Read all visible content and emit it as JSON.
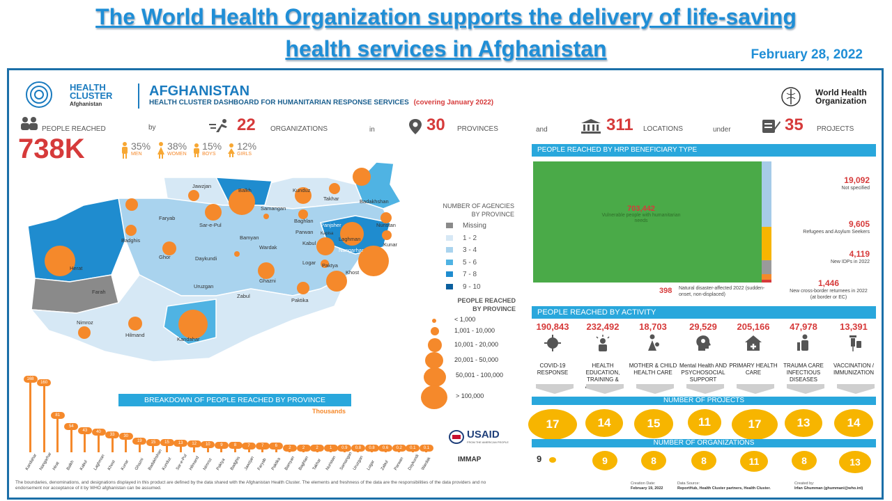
{
  "headline": {
    "line1": "The World Health Organization supports the delivery of life-saving",
    "line2": "health services in Afghanistan",
    "date": "February 28, 2022"
  },
  "dashboard": {
    "logo_line1": "HEALTH",
    "logo_line2": "CLUSTER",
    "logo_line3": "Afghanistan",
    "country": "AFGHANISTAN",
    "subtitle": "HEALTH CLUSTER DASHBOARD FOR HUMANITARIAN RESPONSE SERVICES",
    "covering": "(covering January 2022)",
    "who_line1": "World Health",
    "who_line2": "Organization"
  },
  "stats": {
    "people_label": "PEOPLE REACHED",
    "people_value": "738K",
    "by": "by",
    "orgs_value": "22",
    "orgs_label": "ORGANIZATIONS",
    "in": "in",
    "provinces_value": "30",
    "provinces_label": "PROVINCES",
    "and": "and",
    "locations_value": "311",
    "locations_label": "LOCATIONS",
    "under": "under",
    "projects_value": "35",
    "projects_label": "PROJECTS",
    "demographics": [
      {
        "pct": "35%",
        "label": "MEN"
      },
      {
        "pct": "38%",
        "label": "WOMEN"
      },
      {
        "pct": "15%",
        "label": "BOYS"
      },
      {
        "pct": "12%",
        "label": "GIRLS"
      }
    ]
  },
  "map": {
    "labels": [
      "Jawzjan",
      "Balkh",
      "Kunduz",
      "Takhar",
      "Badakhshan",
      "Faryab",
      "Sar-e-Pul",
      "Samangan",
      "Baghlan",
      "Nuristan",
      "Badghis",
      "Panjsher",
      "Kapisa",
      "Parwan",
      "Laghman",
      "Bamyan",
      "Wardak",
      "Kabul",
      "Nangarhar",
      "Kunar",
      "Herat",
      "Ghor",
      "Daykundi",
      "Logar",
      "Paktya",
      "Khost",
      "Ghazni",
      "Farah",
      "Uruzgan",
      "Zabul",
      "Paktika",
      "Nimroz",
      "Hilmand",
      "Kandahar"
    ],
    "agencies_title1": "NUMBER OF AGENCIES",
    "agencies_title2": "BY PROVINCE",
    "agencies_legend": [
      {
        "label": "Missing",
        "color": "#8a8a8a"
      },
      {
        "label": "1 - 2",
        "color": "#d6e8f5"
      },
      {
        "label": "3 - 4",
        "color": "#a9d3ee"
      },
      {
        "label": "5 - 6",
        "color": "#4fb3e3"
      },
      {
        "label": "7 - 8",
        "color": "#1f8ccf"
      },
      {
        "label": "9 - 10",
        "color": "#0a5f9e"
      }
    ],
    "reached_title1": "PEOPLE REACHED",
    "reached_title2": "BY PROVINCE",
    "reached_legend": [
      "< 1,000",
      "1,001 - 10,000",
      "10,001 - 20,000",
      "20,001 - 50,000",
      "50,001 - 100,000",
      "> 100,000"
    ]
  },
  "breakdown": {
    "title": "BREAKDOWN OF PEOPLE REACHED BY PROVINCE",
    "unit": "Thousands",
    "chart_data": {
      "type": "bar",
      "title": "BREAKDOWN OF PEOPLE REACHED BY PROVINCE",
      "ylabel": "Thousands",
      "categories": [
        "Kandahar",
        "Nangarhar",
        "Hirat",
        "Balkh",
        "Kabul",
        "Laghman",
        "Khost",
        "Kunar",
        "Ghazni",
        "Badakhshan",
        "Kunduz",
        "Sar-e-Pul",
        "Hilmand",
        "Nimroz",
        "Paktya",
        "Badghis",
        "Jawzjan",
        "Faryab",
        "Paktika",
        "Bamyan",
        "Baghlan",
        "Takhar",
        "Nuristan",
        "Samangan",
        "Uruzgan",
        "Logar",
        "Zabul",
        "Parwan",
        "Daykundi",
        "Wardak"
      ],
      "values": [
        168,
        160,
        81,
        54,
        43,
        40,
        33,
        30,
        19,
        15,
        15,
        13,
        12,
        10,
        9,
        8,
        7,
        7,
        6,
        2,
        2,
        2,
        1,
        0.9,
        0.8,
        0.8,
        0.6,
        0.2,
        0.1,
        0.1
      ],
      "labels": [
        "168",
        "160",
        "81",
        "54",
        "43",
        "40",
        "33",
        "30",
        "19",
        "15",
        "15",
        "13",
        "12",
        "10",
        "9",
        "8",
        "7",
        "7",
        "6",
        "2",
        "2",
        "2",
        "1",
        "0.9",
        "0.8",
        "0.8",
        "0.6",
        "0.2",
        "0.1",
        "0.1"
      ]
    }
  },
  "beneficiary": {
    "title": "PEOPLE REACHED BY HRP BENEFICIARY TYPE",
    "main_value": "703,442",
    "main_label": "Vulnerable people with humanitarian needs",
    "items": [
      {
        "value": "19,092",
        "label": "Not specified"
      },
      {
        "value": "9,605",
        "label": "Refugees and Asylum Seekers"
      },
      {
        "value": "4,119",
        "label": "New IDPs in 2022"
      },
      {
        "value": "1,446",
        "label": "New cross-border returnees in 2022 (at border or EC)"
      }
    ],
    "natural_value": "398",
    "natural_label": "Natural disaster-affected 2022 (sudden-onset, non-displaced)"
  },
  "activity": {
    "title": "PEOPLE REACHED BY ACTIVITY",
    "items": [
      {
        "value": "190,843",
        "label": "COVID-19 RESPONSE",
        "projects": "17",
        "orgs": "9"
      },
      {
        "value": "232,492",
        "label": "HEALTH EDUCATION, TRAINING & AWARENESS",
        "projects": "14",
        "orgs": "9"
      },
      {
        "value": "18,703",
        "label": "MOTHER & CHILD HEALTH CARE",
        "projects": "15",
        "orgs": "8"
      },
      {
        "value": "29,529",
        "label": "Mental Health AND PSYCHOSOCIAL SUPPORT",
        "projects": "11",
        "orgs": "8"
      },
      {
        "value": "205,166",
        "label": "PRIMARY HEALTH CARE",
        "projects": "17",
        "orgs": "11"
      },
      {
        "value": "47,978",
        "label": "TRAUMA CARE INFECTIOUS DISEASES",
        "projects": "13",
        "orgs": "8"
      },
      {
        "value": "13,391",
        "label": "VACCINATION / IMMUNIZATION",
        "projects": "14",
        "orgs": "13"
      }
    ],
    "projects_band": "NUMBER OF PROJECTS",
    "orgs_band": "NUMBER OF ORGANIZATIONS"
  },
  "footer": {
    "disclaimer": "The boundaries, denominations, and designations displayed in this product are defined by the data shared with the Afghanistan Health Cluster. The elements and freshness of the data are the responsibilities of the data providers and no endorsement nor acceptance of it by WHO afghanistan can be assumed.",
    "creation_label": "Creation Date:",
    "creation_date": "February 19, 2022",
    "source_label": "Data Source:",
    "source": "ReportHub, Health Cluster partners, Health Cluster.",
    "created_label": "Created by:",
    "created_by": "Irfan Ghumman (ghummani@who.int)",
    "usaid": "USAID",
    "usaid_sub": "FROM THE AMERICAN PEOPLE",
    "immap": "IMMAP"
  }
}
